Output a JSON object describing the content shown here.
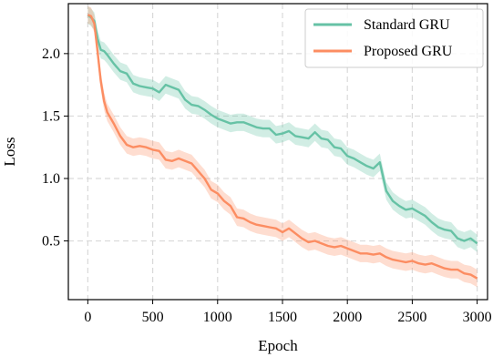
{
  "chart_data": {
    "type": "line",
    "xlabel": "Epoch",
    "ylabel": "Loss",
    "xlim": [
      -150,
      3080
    ],
    "ylim": [
      0.03,
      2.4
    ],
    "xticks": [
      0,
      500,
      1000,
      1500,
      2000,
      2500,
      3000
    ],
    "yticks": [
      0.5,
      1.0,
      1.5,
      2.0
    ],
    "xtick_labels": [
      "0",
      "500",
      "1000",
      "1500",
      "2000",
      "2500",
      "3000"
    ],
    "ytick_labels": [
      "0.5",
      "1.0",
      "1.5",
      "2.0"
    ],
    "grid": true,
    "legend_position": "top-right",
    "shaded_band": true,
    "series": [
      {
        "name": "Standard GRU",
        "color": "#66c2a5",
        "band_halfwidth": 0.07,
        "x": [
          0,
          25,
          50,
          75,
          100,
          125,
          150,
          200,
          250,
          300,
          350,
          400,
          450,
          500,
          550,
          600,
          650,
          700,
          750,
          800,
          850,
          900,
          950,
          1000,
          1050,
          1100,
          1150,
          1200,
          1250,
          1300,
          1350,
          1400,
          1450,
          1500,
          1550,
          1600,
          1650,
          1700,
          1750,
          1800,
          1850,
          1900,
          1950,
          2000,
          2050,
          2100,
          2150,
          2200,
          2250,
          2300,
          2350,
          2400,
          2450,
          2500,
          2550,
          2600,
          2650,
          2700,
          2750,
          2800,
          2850,
          2900,
          2950,
          3000
        ],
        "y": [
          2.31,
          2.29,
          2.26,
          2.12,
          2.03,
          2.02,
          1.99,
          1.92,
          1.86,
          1.84,
          1.76,
          1.74,
          1.73,
          1.72,
          1.69,
          1.75,
          1.73,
          1.71,
          1.63,
          1.59,
          1.58,
          1.55,
          1.51,
          1.48,
          1.46,
          1.44,
          1.45,
          1.45,
          1.43,
          1.41,
          1.4,
          1.4,
          1.35,
          1.36,
          1.38,
          1.34,
          1.33,
          1.32,
          1.37,
          1.32,
          1.31,
          1.25,
          1.24,
          1.18,
          1.16,
          1.13,
          1.1,
          1.08,
          1.13,
          0.9,
          0.82,
          0.78,
          0.75,
          0.76,
          0.73,
          0.7,
          0.65,
          0.61,
          0.59,
          0.58,
          0.52,
          0.5,
          0.52,
          0.48
        ]
      },
      {
        "name": "Proposed GRU",
        "color": "#fc8d62",
        "band_halfwidth": 0.07,
        "x": [
          0,
          25,
          50,
          75,
          100,
          125,
          150,
          200,
          250,
          300,
          350,
          400,
          450,
          500,
          550,
          600,
          650,
          700,
          750,
          800,
          850,
          900,
          950,
          1000,
          1050,
          1100,
          1150,
          1200,
          1250,
          1300,
          1350,
          1400,
          1450,
          1500,
          1550,
          1600,
          1650,
          1700,
          1750,
          1800,
          1850,
          1900,
          1950,
          2000,
          2050,
          2100,
          2150,
          2200,
          2250,
          2300,
          2350,
          2400,
          2450,
          2500,
          2550,
          2600,
          2650,
          2700,
          2750,
          2800,
          2850,
          2900,
          2950,
          3000
        ],
        "y": [
          2.31,
          2.3,
          2.24,
          2.02,
          1.78,
          1.62,
          1.53,
          1.44,
          1.34,
          1.27,
          1.25,
          1.26,
          1.25,
          1.23,
          1.22,
          1.15,
          1.14,
          1.16,
          1.14,
          1.12,
          1.06,
          1.0,
          0.91,
          0.88,
          0.82,
          0.78,
          0.69,
          0.68,
          0.65,
          0.63,
          0.62,
          0.61,
          0.6,
          0.57,
          0.6,
          0.56,
          0.52,
          0.49,
          0.5,
          0.48,
          0.46,
          0.45,
          0.46,
          0.44,
          0.42,
          0.4,
          0.4,
          0.39,
          0.4,
          0.37,
          0.35,
          0.34,
          0.33,
          0.34,
          0.32,
          0.31,
          0.32,
          0.3,
          0.28,
          0.27,
          0.27,
          0.24,
          0.23,
          0.2
        ]
      }
    ]
  }
}
